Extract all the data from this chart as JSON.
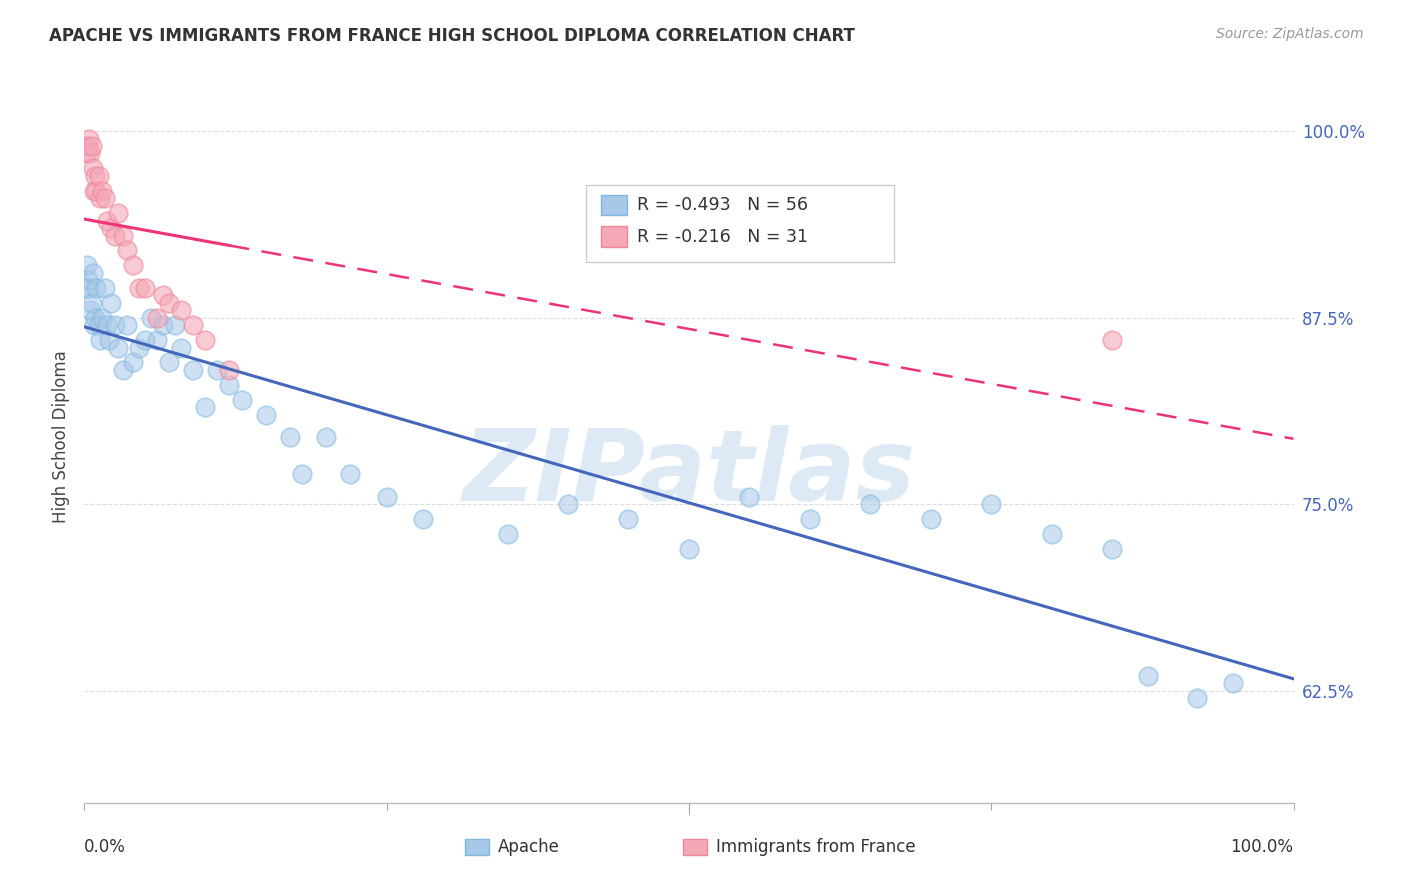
{
  "title": "APACHE VS IMMIGRANTS FROM FRANCE HIGH SCHOOL DIPLOMA CORRELATION CHART",
  "source": "Source: ZipAtlas.com",
  "ylabel": "High School Diploma",
  "legend_stats_blue": {
    "R": "-0.493",
    "N": "56"
  },
  "legend_stats_pink": {
    "R": "-0.216",
    "N": "31"
  },
  "blue_scatter_color": "#A8C8E8",
  "pink_scatter_color": "#F4A8B8",
  "blue_edge_color": "#7EB8E0",
  "pink_edge_color": "#EE8899",
  "blue_line_color": "#4466BB",
  "pink_line_color": "#EE3377",
  "watermark_color": "#E0E8F0",
  "background_color": "#FFFFFF",
  "grid_color": "#DDDDDD",
  "ytick_labels": [
    "62.5%",
    "75.0%",
    "87.5%",
    "100.0%"
  ],
  "ytick_values": [
    0.625,
    0.75,
    0.875,
    1.0
  ],
  "ytick_color": "#4466BB",
  "apache_x": [
    0.001,
    0.002,
    0.003,
    0.004,
    0.005,
    0.006,
    0.007,
    0.008,
    0.009,
    0.01,
    0.012,
    0.013,
    0.015,
    0.017,
    0.019,
    0.02,
    0.022,
    0.025,
    0.028,
    0.032,
    0.035,
    0.04,
    0.045,
    0.05,
    0.055,
    0.06,
    0.065,
    0.07,
    0.075,
    0.08,
    0.09,
    0.1,
    0.11,
    0.12,
    0.13,
    0.15,
    0.17,
    0.18,
    0.2,
    0.22,
    0.25,
    0.28,
    0.35,
    0.4,
    0.45,
    0.5,
    0.55,
    0.6,
    0.65,
    0.7,
    0.75,
    0.8,
    0.85,
    0.88,
    0.92,
    0.95
  ],
  "apache_y": [
    0.895,
    0.91,
    0.9,
    0.895,
    0.88,
    0.885,
    0.905,
    0.87,
    0.875,
    0.895,
    0.87,
    0.86,
    0.875,
    0.895,
    0.87,
    0.86,
    0.885,
    0.87,
    0.855,
    0.84,
    0.87,
    0.845,
    0.855,
    0.86,
    0.875,
    0.86,
    0.87,
    0.845,
    0.87,
    0.855,
    0.84,
    0.815,
    0.84,
    0.83,
    0.82,
    0.81,
    0.795,
    0.77,
    0.795,
    0.77,
    0.755,
    0.74,
    0.73,
    0.75,
    0.74,
    0.72,
    0.755,
    0.74,
    0.75,
    0.74,
    0.75,
    0.73,
    0.72,
    0.635,
    0.62,
    0.63
  ],
  "france_x": [
    0.001,
    0.002,
    0.003,
    0.004,
    0.005,
    0.006,
    0.007,
    0.008,
    0.009,
    0.01,
    0.012,
    0.013,
    0.015,
    0.017,
    0.019,
    0.022,
    0.025,
    0.028,
    0.032,
    0.035,
    0.04,
    0.045,
    0.05,
    0.06,
    0.065,
    0.07,
    0.08,
    0.09,
    0.1,
    0.12,
    0.85
  ],
  "france_y": [
    0.99,
    0.985,
    0.99,
    0.995,
    0.985,
    0.99,
    0.975,
    0.96,
    0.97,
    0.96,
    0.97,
    0.955,
    0.96,
    0.955,
    0.94,
    0.935,
    0.93,
    0.945,
    0.93,
    0.92,
    0.91,
    0.895,
    0.895,
    0.875,
    0.89,
    0.885,
    0.88,
    0.87,
    0.86,
    0.84,
    0.86
  ]
}
